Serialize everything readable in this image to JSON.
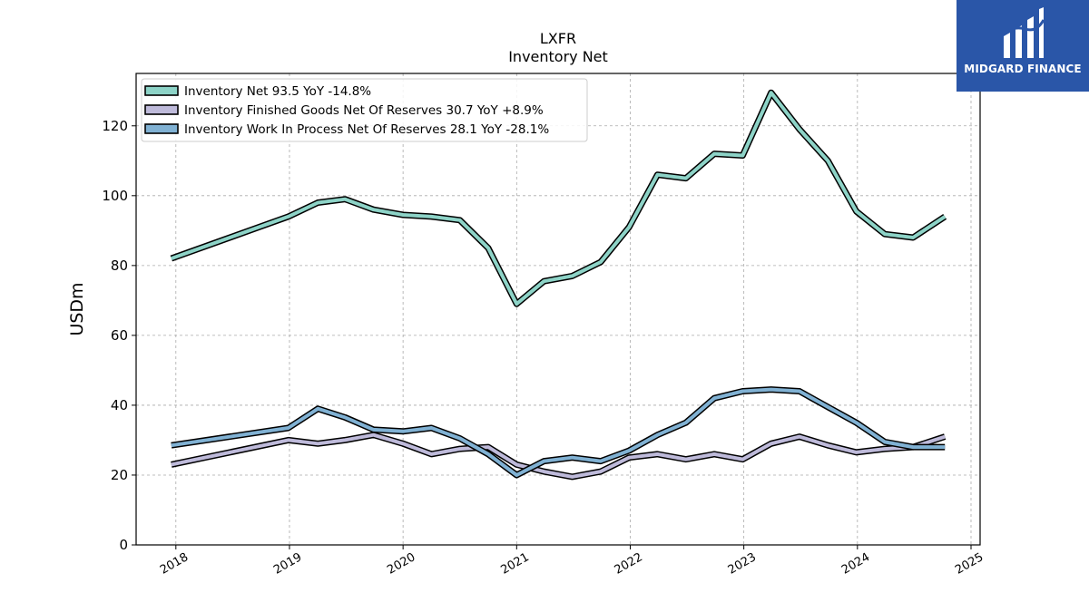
{
  "chart_data": {
    "type": "line",
    "ticker": "LXFR",
    "title": "Inventory Net",
    "ylabel": "USDm",
    "ylim": [
      0,
      135
    ],
    "xlim": [
      2017.65,
      2025.08
    ],
    "yticks": [
      0,
      20,
      40,
      60,
      80,
      100,
      120
    ],
    "xticks": [
      "2018",
      "2019",
      "2020",
      "2021",
      "2022",
      "2023",
      "2024",
      "2025"
    ],
    "grid": true,
    "legend_position": "top-left",
    "series": [
      {
        "name": "Inventory Net  93.5 YoY -14.8%",
        "color": "#8dd3c7",
        "points": [
          [
            2017.96,
            82
          ],
          [
            2018.99,
            94
          ],
          [
            2019.25,
            98
          ],
          [
            2019.49,
            99
          ],
          [
            2019.74,
            96
          ],
          [
            2020.0,
            94.5
          ],
          [
            2020.25,
            94
          ],
          [
            2020.5,
            93
          ],
          [
            2020.75,
            85
          ],
          [
            2021.0,
            69
          ],
          [
            2021.24,
            75.5
          ],
          [
            2021.49,
            77
          ],
          [
            2021.74,
            81
          ],
          [
            2021.99,
            91
          ],
          [
            2022.24,
            106
          ],
          [
            2022.49,
            105
          ],
          [
            2022.74,
            112
          ],
          [
            2022.99,
            111.5
          ],
          [
            2023.24,
            129.5
          ],
          [
            2023.49,
            119
          ],
          [
            2023.74,
            110
          ],
          [
            2023.99,
            95.5
          ],
          [
            2024.24,
            89
          ],
          [
            2024.49,
            88
          ],
          [
            2024.77,
            94
          ]
        ]
      },
      {
        "name": "Inventory Finished Goods Net Of Reserves  30.7 YoY +8.9%",
        "color": "#bebada",
        "points": [
          [
            2017.96,
            23
          ],
          [
            2018.99,
            30
          ],
          [
            2019.25,
            29
          ],
          [
            2019.49,
            30
          ],
          [
            2019.74,
            31.5
          ],
          [
            2020.0,
            29
          ],
          [
            2020.25,
            26
          ],
          [
            2020.5,
            27.5
          ],
          [
            2020.75,
            28
          ],
          [
            2021.0,
            23
          ],
          [
            2021.24,
            21
          ],
          [
            2021.49,
            19.5
          ],
          [
            2021.74,
            21
          ],
          [
            2021.99,
            25
          ],
          [
            2022.24,
            26
          ],
          [
            2022.49,
            24.5
          ],
          [
            2022.74,
            26
          ],
          [
            2022.99,
            24.5
          ],
          [
            2023.24,
            29
          ],
          [
            2023.49,
            31
          ],
          [
            2023.74,
            28.5
          ],
          [
            2023.99,
            26.5
          ],
          [
            2024.24,
            27.5
          ],
          [
            2024.49,
            28
          ],
          [
            2024.77,
            31
          ]
        ]
      },
      {
        "name": "Inventory Work In Process Net Of Reserves  28.1 YoY -28.1%",
        "color": "#80b1d3",
        "points": [
          [
            2017.96,
            28.5
          ],
          [
            2018.99,
            33.5
          ],
          [
            2019.25,
            39
          ],
          [
            2019.49,
            36.5
          ],
          [
            2019.74,
            33
          ],
          [
            2020.0,
            32.5
          ],
          [
            2020.25,
            33.5
          ],
          [
            2020.5,
            30.5
          ],
          [
            2020.75,
            26
          ],
          [
            2021.0,
            20
          ],
          [
            2021.24,
            24
          ],
          [
            2021.49,
            25
          ],
          [
            2021.74,
            24
          ],
          [
            2021.99,
            27
          ],
          [
            2022.24,
            31.5
          ],
          [
            2022.49,
            35
          ],
          [
            2022.74,
            42
          ],
          [
            2022.99,
            44
          ],
          [
            2023.24,
            44.5
          ],
          [
            2023.49,
            44
          ],
          [
            2023.74,
            39.5
          ],
          [
            2023.99,
            35
          ],
          [
            2024.24,
            29.5
          ],
          [
            2024.49,
            28
          ],
          [
            2024.77,
            28
          ]
        ]
      }
    ]
  },
  "logo": {
    "text": "MIDGARD FINANCE"
  }
}
